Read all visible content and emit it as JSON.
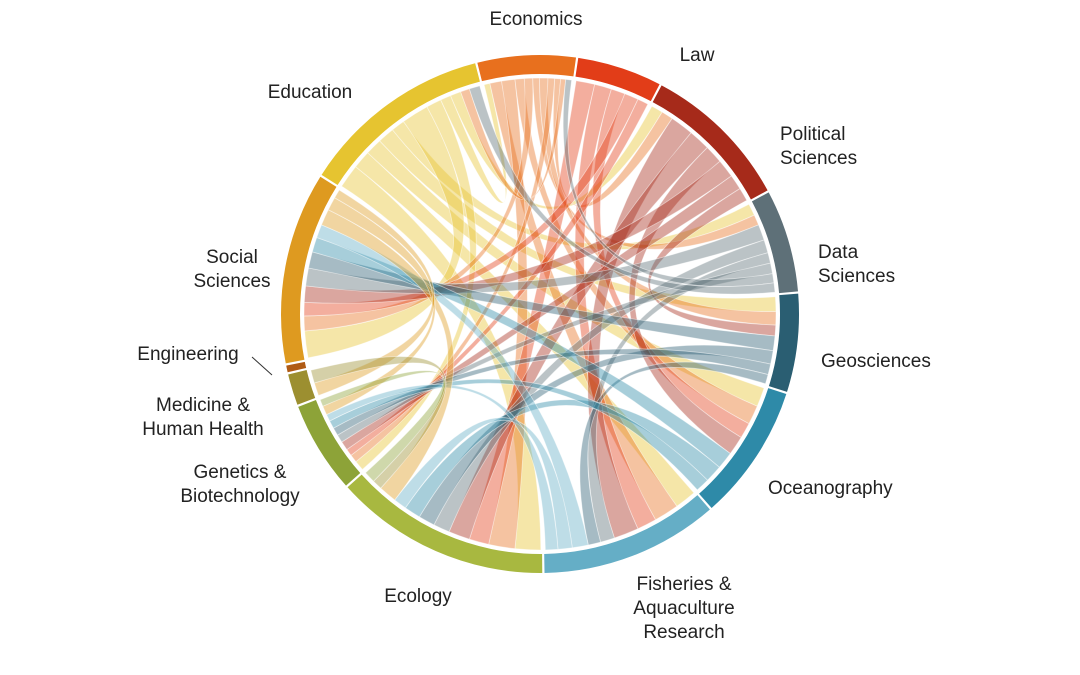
{
  "diagram": {
    "type": "chord",
    "segments": [
      {
        "id": "economics",
        "label": [
          "Economics"
        ],
        "color": "#E8701E",
        "a0": 346,
        "a1": 8
      },
      {
        "id": "law",
        "label": [
          "Law"
        ],
        "color": "#E23D18",
        "a0": 8.5,
        "a1": 27.5
      },
      {
        "id": "political",
        "label": [
          "Political",
          "Sciences"
        ],
        "color": "#A62A1A",
        "a0": 28,
        "a1": 61.5
      },
      {
        "id": "data",
        "label": [
          "Data",
          "Sciences"
        ],
        "color": "#5E7078",
        "a0": 62,
        "a1": 85
      },
      {
        "id": "geo",
        "label": [
          "Geosciences"
        ],
        "color": "#2A5E72",
        "a0": 85.5,
        "a1": 107.5
      },
      {
        "id": "ocean",
        "label": [
          "Oceanography"
        ],
        "color": "#2E8AA8",
        "a0": 108,
        "a1": 138.5
      },
      {
        "id": "fisheries",
        "label": [
          "Fisheries &",
          "Aquaculture",
          "Research"
        ],
        "color": "#65AEC6",
        "a0": 139,
        "a1": 179
      },
      {
        "id": "ecology",
        "label": [
          "Ecology"
        ],
        "color": "#A8B840",
        "a0": 179.5,
        "a1": 228
      },
      {
        "id": "genetics",
        "label": [
          "Genetics &",
          "Biotechnology"
        ],
        "color": "#8DA338",
        "a0": 228.5,
        "a1": 249
      },
      {
        "id": "medicine",
        "label": [
          "Medicine &",
          "Human Health"
        ],
        "color": "#9C8F30",
        "a0": 249.5,
        "a1": 256.5
      },
      {
        "id": "engineering",
        "label": [
          "Engineering"
        ],
        "color": "#B05B14",
        "a0": 257,
        "a1": 258.5
      },
      {
        "id": "social",
        "label": [
          "Social",
          "Sciences"
        ],
        "color": "#DE9A20",
        "a0": 259,
        "a1": 302
      },
      {
        "id": "education",
        "label": [
          "Education"
        ],
        "color": "#E6C430",
        "a0": 302.5,
        "a1": 345.5
      }
    ],
    "ribbons": [
      [
        "education",
        "ecology",
        0.78
      ],
      [
        "education",
        "fisheries",
        0.6
      ],
      [
        "education",
        "ocean",
        0.55
      ],
      [
        "education",
        "geo",
        0.55
      ],
      [
        "education",
        "data",
        0.45
      ],
      [
        "education",
        "social",
        0.9
      ],
      [
        "education",
        "genetics",
        0.5
      ],
      [
        "education",
        "economics",
        0.35
      ],
      [
        "education",
        "political",
        0.35
      ],
      [
        "economics",
        "fisheries",
        0.7
      ],
      [
        "economics",
        "ecology",
        0.8
      ],
      [
        "economics",
        "ocean",
        0.55
      ],
      [
        "economics",
        "social",
        0.5
      ],
      [
        "economics",
        "data",
        0.4
      ],
      [
        "economics",
        "geo",
        0.5
      ],
      [
        "economics",
        "genetics",
        0.4
      ],
      [
        "economics",
        "political",
        0.35
      ],
      [
        "economics",
        "education",
        0.3
      ],
      [
        "law",
        "ecology",
        0.6
      ],
      [
        "law",
        "fisheries",
        0.55
      ],
      [
        "law",
        "ocean",
        0.45
      ],
      [
        "law",
        "social",
        0.45
      ],
      [
        "law",
        "genetics",
        0.35
      ],
      [
        "political",
        "fisheries",
        0.7
      ],
      [
        "political",
        "ecology",
        0.65
      ],
      [
        "political",
        "ocean",
        0.55
      ],
      [
        "political",
        "social",
        0.55
      ],
      [
        "political",
        "genetics",
        0.45
      ],
      [
        "political",
        "geo",
        0.4
      ],
      [
        "data",
        "social",
        0.6
      ],
      [
        "data",
        "ecology",
        0.5
      ],
      [
        "data",
        "fisheries",
        0.4
      ],
      [
        "data",
        "genetics",
        0.4
      ],
      [
        "data",
        "economics",
        0.35
      ],
      [
        "data",
        "education",
        0.35
      ],
      [
        "geo",
        "social",
        0.55
      ],
      [
        "geo",
        "ecology",
        0.5
      ],
      [
        "geo",
        "genetics",
        0.4
      ],
      [
        "geo",
        "fisheries",
        0.35
      ],
      [
        "ocean",
        "social",
        0.5
      ],
      [
        "ocean",
        "ecology",
        0.5
      ],
      [
        "ocean",
        "genetics",
        0.4
      ],
      [
        "fisheries",
        "social",
        0.45
      ],
      [
        "fisheries",
        "ecology",
        0.4
      ],
      [
        "fisheries",
        "genetics",
        0.35
      ],
      [
        "social",
        "ecology",
        0.55
      ],
      [
        "social",
        "genetics",
        0.45
      ],
      [
        "social",
        "medicine",
        0.3
      ],
      [
        "medicine",
        "ecology",
        0.3
      ],
      [
        "genetics",
        "ecology",
        0.35
      ]
    ]
  }
}
